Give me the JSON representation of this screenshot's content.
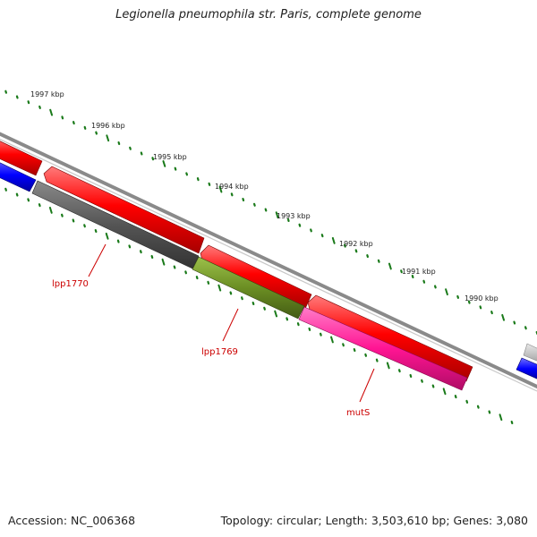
{
  "title": "Legionella pneumophila str. Paris, complete genome",
  "footer": {
    "accession": "Accession: NC_006368",
    "summary": "Topology: circular; Length: 3,503,610 bp; Genes: 3,080"
  },
  "ruler": {
    "labels": [
      "1997 kbp",
      "1996 kbp",
      "1995 kbp",
      "1994 kbp",
      "1993 kbp",
      "1992 kbp",
      "1991 kbp",
      "1990 kbp"
    ],
    "tick_color": "#1a7a1a"
  },
  "genes": [
    {
      "label": "lpp1770",
      "color": "#555555"
    },
    {
      "label": "lpp1769",
      "color": "#6b8e23"
    },
    {
      "label": "mutS",
      "color": "#ff1493"
    }
  ],
  "colors": {
    "forward_strand": "#ff0000",
    "reverse_strand_other": "#0000ff",
    "backbone": "#888888",
    "gene_label": "#cc0000"
  }
}
